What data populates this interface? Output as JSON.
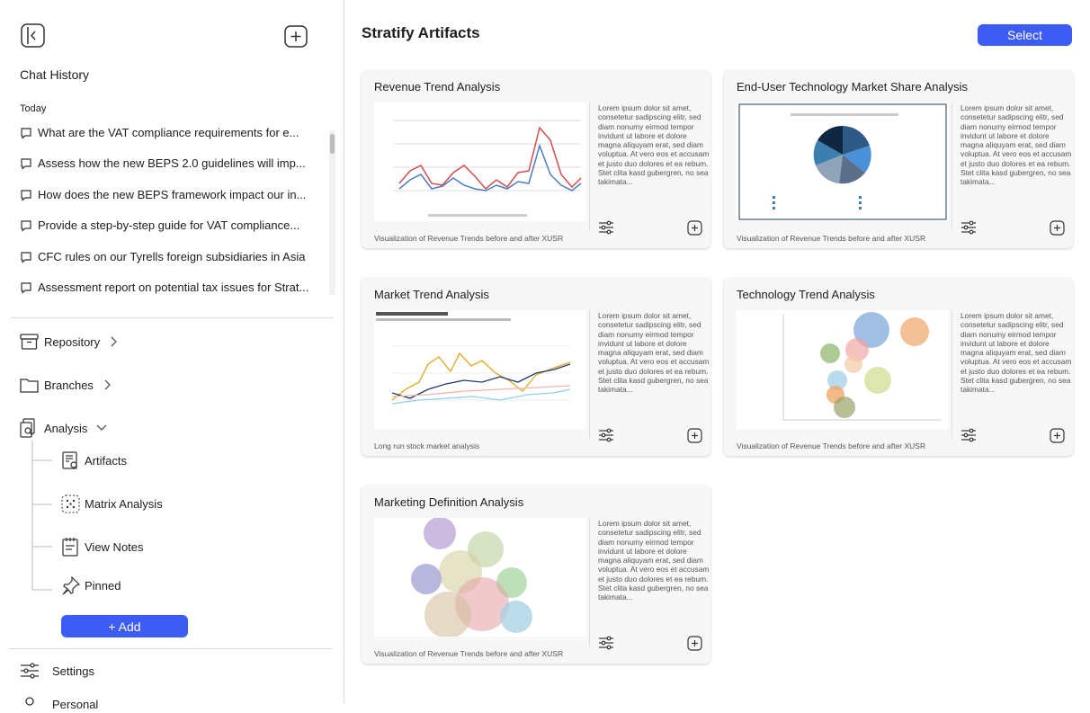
{
  "sidebar": {
    "section_title": "Chat History",
    "group": "Today",
    "chats": [
      "What are the VAT compliance requirements for e...",
      "Assess how the new BEPS 2.0 guidelines will imp...",
      "How does the new BEPS framework impact our in...",
      "Provide a step-by-step guide for VAT compliance...",
      "CFC rules on our Tyrells foreign subsidiaries in Asia",
      "Assessment report on potential tax issues for Strat..."
    ],
    "nav": [
      "Repository",
      "Branches",
      "Analysis"
    ],
    "analysis_items": [
      "Artifacts",
      "Matrix Analysis",
      "View Notes",
      "Pinned"
    ],
    "add_button": "+ Add",
    "settings": "Settings",
    "personal": "Personal"
  },
  "main": {
    "title": "Stratify Artifacts",
    "select_button": "Select",
    "cards": [
      {
        "title": "Revenue Trend Analysis",
        "description": "Lorem ipsum dolor sit amet, consetetur sadipscing elitr, sed diam nonumy eirmod tempor invidunt ut labore et dolore magna aliquyam erat, sed diam voluptua. At vero eos et accusam et justo duo dolores et ea rebum. Stet clita kasd gubergren, no sea takimata...",
        "caption": "Visualization of Revenue Trends before and after XUSR"
      },
      {
        "title": "End-User Technology Market Share Analysis",
        "description": "Lorem ipsum dolor sit amet, consetetur sadipscing elitr, sed diam nonumy eirmod tempor invidunt ut labore et dolore magna aliquyam erat, sed diam voluptua. At vero eos et accusam et justo duo dolores et ea rebum. Stet clita kasd gubergren, no sea takimata...",
        "caption": "Visualization of Revenue Trends before and after XUSR"
      },
      {
        "title": "Market Trend Analysis",
        "description": "Lorem ipsum dolor sit amet, consetetur sadipscing elitr, sed diam nonumy eirmod tempor invidunt ut labore et dolore magna aliquyam erat, sed diam voluptua. At vero eos et accusam et justo duo dolores et ea rebum. Stet clita kasd gubergren, no sea takimata...",
        "caption": "Long run stock market analysis"
      },
      {
        "title": "Technology Trend Analysis",
        "description": "Lorem ipsum dolor sit amet, consetetur sadipscing elitr, sed diam nonumy eirmod tempor invidunt ut labore et dolore magna aliquyam erat, sed diam voluptua. At vero eos et accusam et justo duo dolores et ea rebum. Stet clita kasd gubergren, no sea takimata...",
        "caption": "Visualization of Revenue Trends before and after XUSR"
      },
      {
        "title": "Marketing Definition Analysis",
        "description": "Lorem ipsum dolor sit amet, consetetur sadipscing elitr, sed diam nonumy eirmod tempor invidunt ut labore et dolore magna aliquyam erat, sed diam voluptua. At vero eos et accusam et justo duo dolores et ea rebum. Stet clita kasd gubergren, no sea takimata...",
        "caption": "Visualization of Revenue Trends before and after XUSR"
      }
    ]
  }
}
